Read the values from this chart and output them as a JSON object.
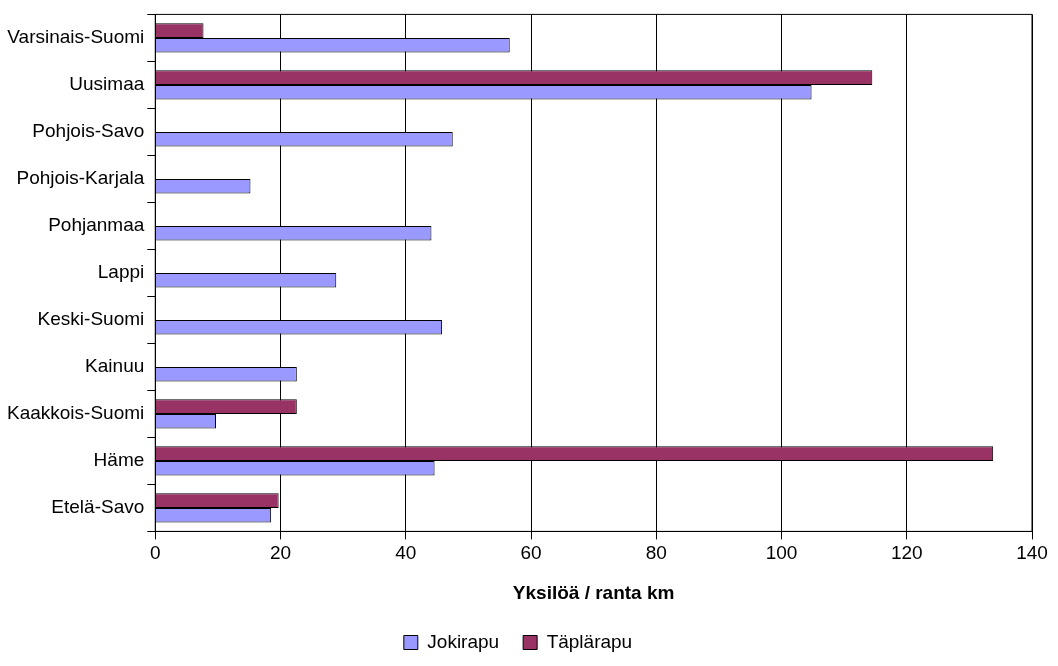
{
  "chart_data": {
    "type": "bar",
    "orientation": "horizontal",
    "xlabel": "Yksilöä / ranta km",
    "categories": [
      "Varsinais-Suomi",
      "Uusimaa",
      "Pohjois-Savo",
      "Pohjois-Karjala",
      "Pohjanmaa",
      "Lappi",
      "Keski-Suomi",
      "Kainuu",
      "Kaakkois-Suomi",
      "Häme",
      "Etelä-Savo"
    ],
    "series": [
      {
        "name": "Jokirapu",
        "color": "#9999ff",
        "values": [
          56.6,
          104.8,
          47.5,
          15.2,
          44.1,
          28.9,
          45.8,
          22.6,
          9.7,
          44.6,
          18.5
        ]
      },
      {
        "name": "Täplärapu",
        "color": "#993366",
        "values": [
          7.7,
          114.5,
          null,
          null,
          null,
          null,
          null,
          null,
          22.6,
          133.8,
          19.7
        ]
      }
    ],
    "xlim": [
      0,
      140
    ],
    "xticks": [
      0,
      20,
      40,
      60,
      80,
      100,
      120,
      140
    ],
    "grid": "x",
    "legend": "bottom"
  }
}
